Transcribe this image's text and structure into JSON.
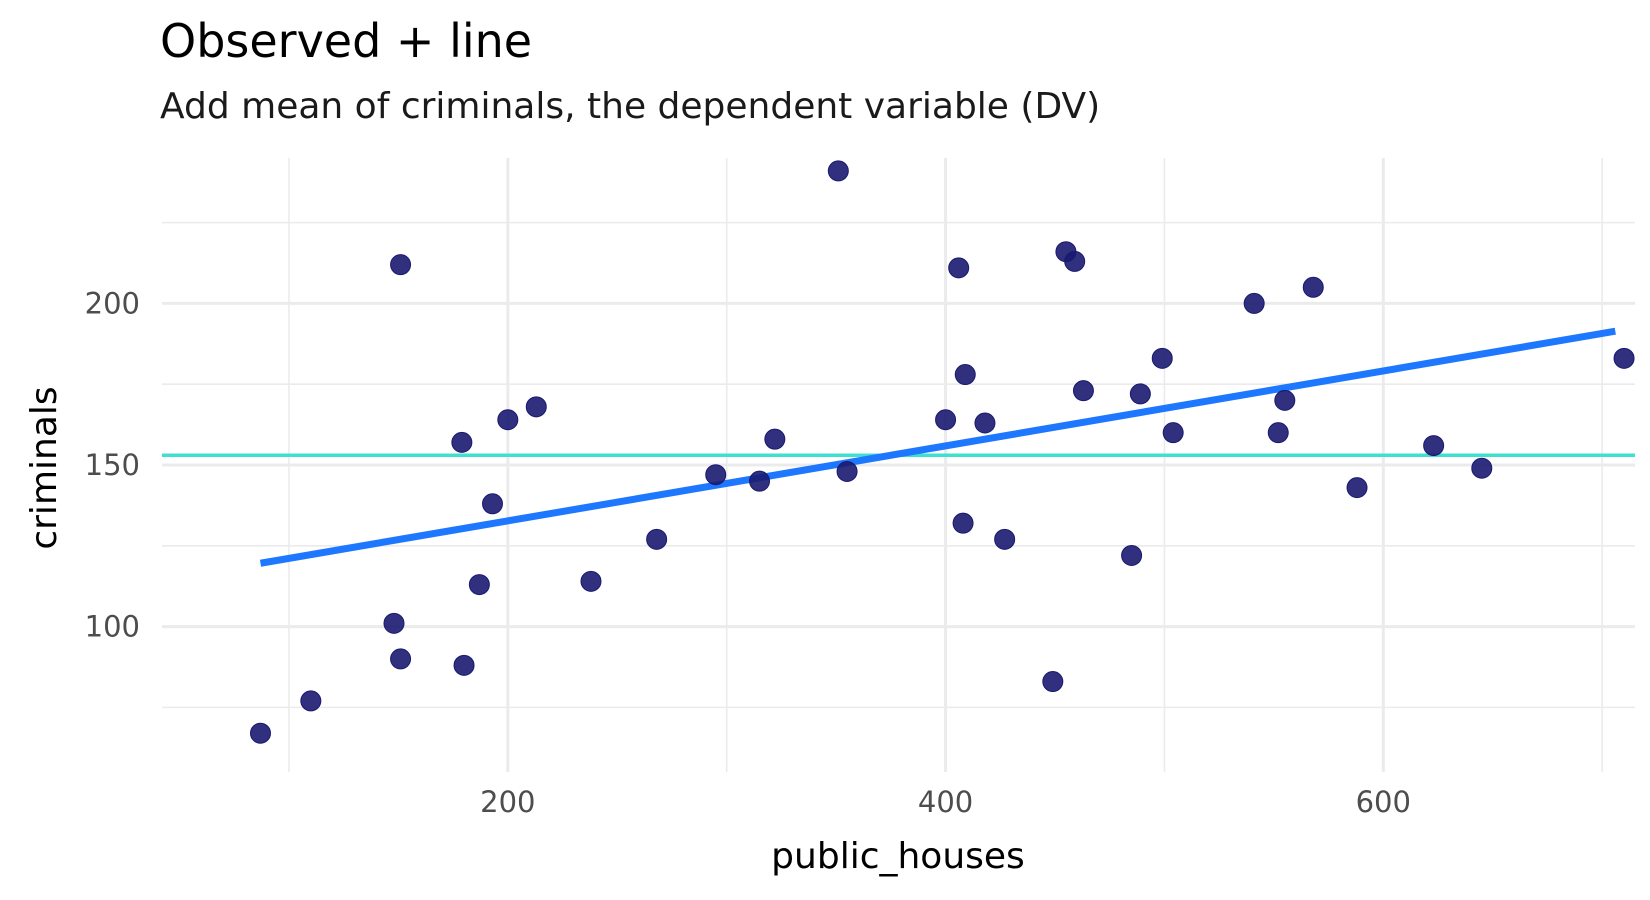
{
  "chart_data": {
    "type": "scatter",
    "title": "Observed + line",
    "subtitle": "Add mean of criminals, the dependent variable (DV)",
    "xlabel": "public_houses",
    "ylabel": "criminals",
    "xlim": [
      42,
      715
    ],
    "ylim": [
      55,
      245
    ],
    "x_ticks": [
      200,
      400,
      600
    ],
    "y_ticks": [
      100,
      150,
      200
    ],
    "grid": true,
    "points": [
      {
        "x": 87,
        "y": 67
      },
      {
        "x": 110,
        "y": 77
      },
      {
        "x": 148,
        "y": 101
      },
      {
        "x": 151,
        "y": 90
      },
      {
        "x": 151,
        "y": 212
      },
      {
        "x": 179,
        "y": 157
      },
      {
        "x": 180,
        "y": 88
      },
      {
        "x": 187,
        "y": 113
      },
      {
        "x": 193,
        "y": 138
      },
      {
        "x": 200,
        "y": 164
      },
      {
        "x": 213,
        "y": 168
      },
      {
        "x": 238,
        "y": 114
      },
      {
        "x": 268,
        "y": 127
      },
      {
        "x": 295,
        "y": 147
      },
      {
        "x": 315,
        "y": 145
      },
      {
        "x": 322,
        "y": 158
      },
      {
        "x": 351,
        "y": 241
      },
      {
        "x": 355,
        "y": 148
      },
      {
        "x": 400,
        "y": 164
      },
      {
        "x": 406,
        "y": 211
      },
      {
        "x": 408,
        "y": 132
      },
      {
        "x": 409,
        "y": 178
      },
      {
        "x": 418,
        "y": 163
      },
      {
        "x": 427,
        "y": 127
      },
      {
        "x": 449,
        "y": 83
      },
      {
        "x": 455,
        "y": 216
      },
      {
        "x": 459,
        "y": 213
      },
      {
        "x": 463,
        "y": 173
      },
      {
        "x": 485,
        "y": 122
      },
      {
        "x": 489,
        "y": 172
      },
      {
        "x": 499,
        "y": 183
      },
      {
        "x": 504,
        "y": 160
      },
      {
        "x": 541,
        "y": 200
      },
      {
        "x": 552,
        "y": 160
      },
      {
        "x": 555,
        "y": 170
      },
      {
        "x": 568,
        "y": 205
      },
      {
        "x": 588,
        "y": 143
      },
      {
        "x": 623,
        "y": 156
      },
      {
        "x": 645,
        "y": 149
      },
      {
        "x": 710,
        "y": 183
      }
    ],
    "regression_line": {
      "x": [
        87,
        706
      ],
      "y": [
        119.6,
        191.4
      ]
    },
    "mean_line": {
      "y": 153
    },
    "colors": {
      "points": "#191970",
      "regression_line": "#1e78ff",
      "mean_line": "#40e0d0",
      "grid": "#ebebeb",
      "tick_text": "#4d4d4d"
    }
  }
}
